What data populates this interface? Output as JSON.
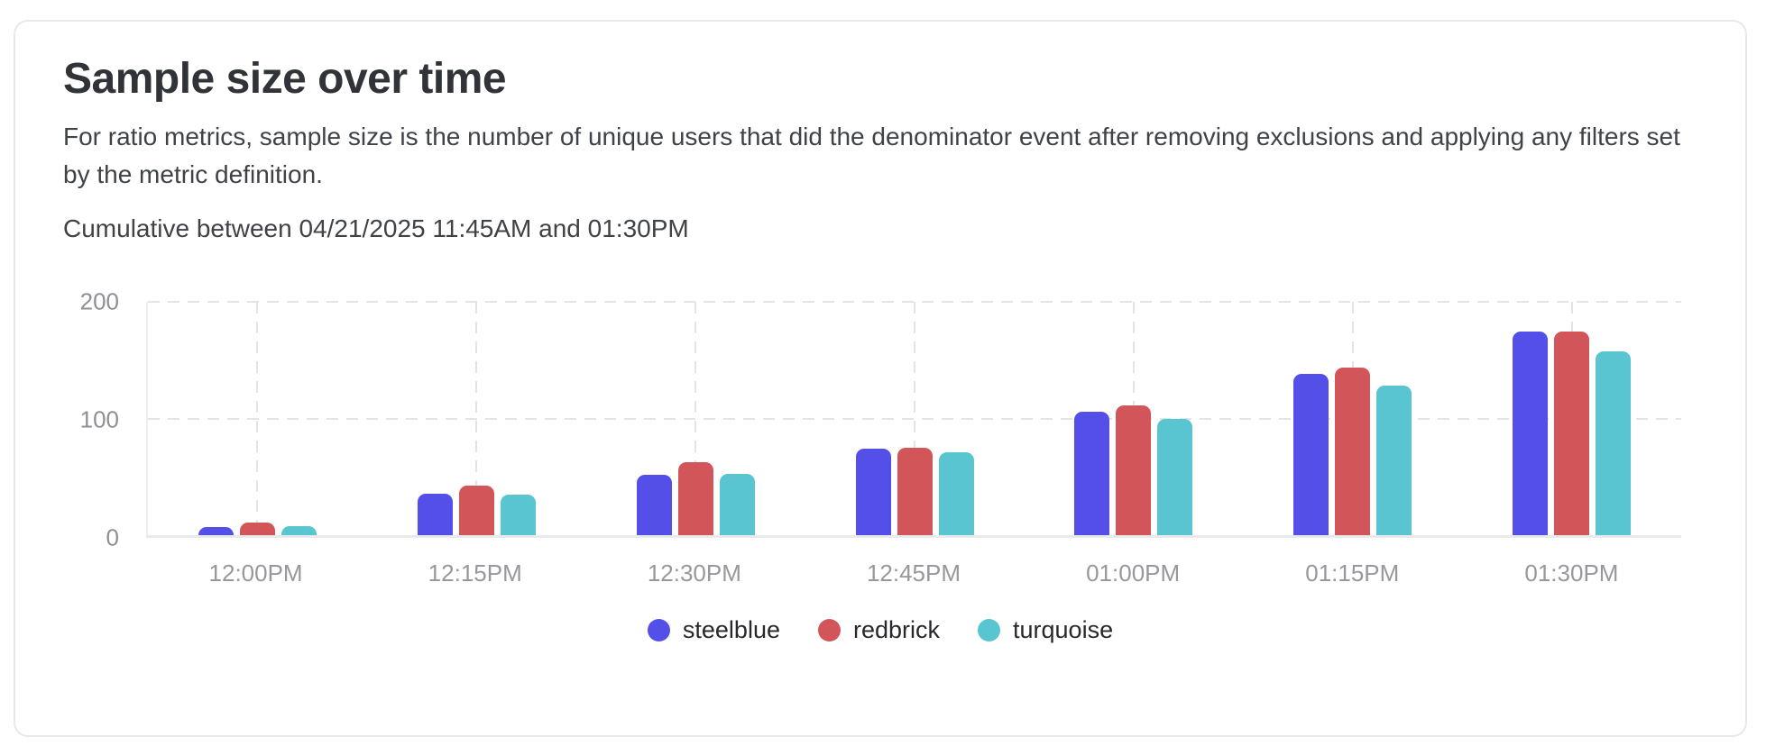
{
  "card": {
    "title": "Sample size over time",
    "description": "For ratio metrics, sample size is the number of unique users that did the denominator event after removing exclusions and applying any filters set by the metric definition.",
    "range": "Cumulative between 04/21/2025 11:45AM and 01:30PM"
  },
  "chart_data": {
    "type": "bar",
    "title": "Sample size over time",
    "categories": [
      "12:00PM",
      "12:15PM",
      "12:30PM",
      "12:45PM",
      "01:00PM",
      "01:15PM",
      "01:30PM"
    ],
    "series": [
      {
        "name": "steelblue",
        "color": "#534fe8",
        "values": [
          7,
          36,
          52,
          74,
          106,
          138,
          175
        ]
      },
      {
        "name": "redbrick",
        "color": "#d15559",
        "values": [
          11,
          43,
          63,
          75,
          111,
          144,
          175
        ]
      },
      {
        "name": "turquoise",
        "color": "#58c5d0",
        "values": [
          8,
          35,
          53,
          71,
          100,
          128,
          158
        ]
      }
    ],
    "ylim": [
      0,
      200
    ],
    "yticks": [
      0,
      100,
      200
    ],
    "xlabel": "",
    "ylabel": "",
    "grid": "dashed horizontal at 100 and 200, dashed vertical at each category",
    "legend_position": "bottom-center",
    "colors": {
      "grid_dashed": "#e2e4e6",
      "axis_line": "#ededef",
      "baseline": "#e9eaec",
      "tick_text": "#8d9094",
      "x_label_text": "#96989b",
      "legend_text": "#26282c",
      "card_border": "#e7e8ea"
    }
  }
}
